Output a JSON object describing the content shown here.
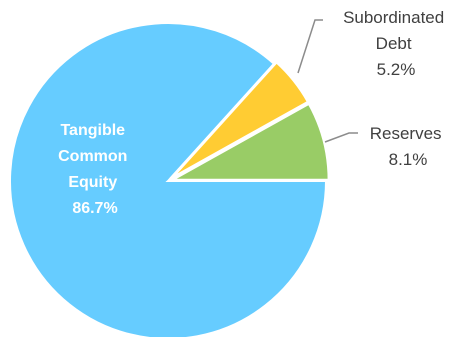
{
  "chart_data": {
    "type": "pie",
    "title": "",
    "slices": [
      {
        "name": "Tangible Common Equity",
        "name_lines": [
          "Tangible",
          "Common",
          "Equity"
        ],
        "value": 86.7,
        "value_label": "86.7%",
        "color": "#66ccff"
      },
      {
        "name": "Subordinated Debt",
        "name_lines": [
          "Subordinated",
          "Debt"
        ],
        "value": 5.2,
        "value_label": "5.2%",
        "color": "#ffcc33"
      },
      {
        "name": "Reserves",
        "name_lines": [
          "Reserves"
        ],
        "value": 8.1,
        "value_label": "8.1%",
        "color": "#99cc66"
      }
    ],
    "legend": "none",
    "exploded_slices": [
      "Subordinated Debt",
      "Reserves"
    ]
  }
}
